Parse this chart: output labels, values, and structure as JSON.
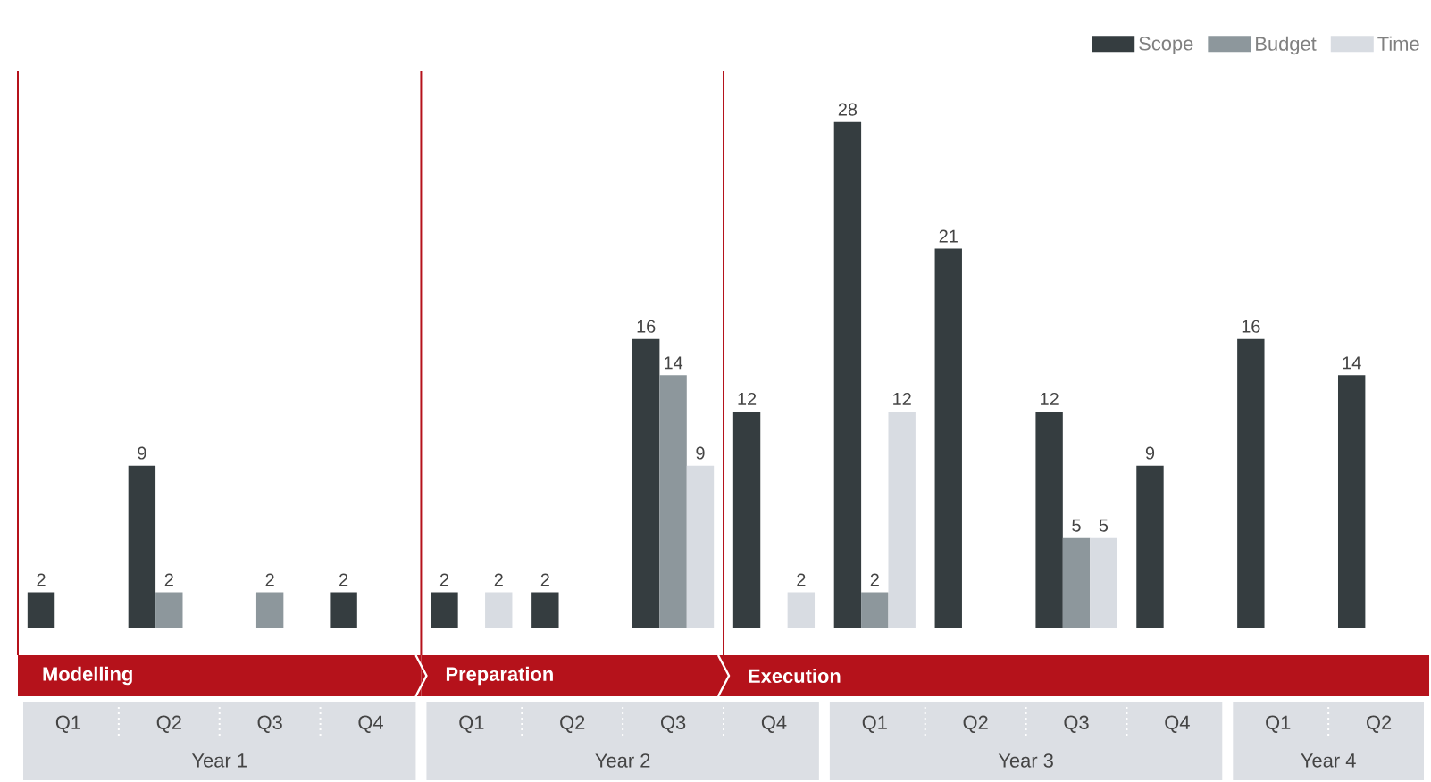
{
  "chart_data": {
    "type": "bar",
    "categories": [
      "Q1",
      "Q2",
      "Q3",
      "Q4",
      "Q1",
      "Q2",
      "Q3",
      "Q4",
      "Q1",
      "Q2",
      "Q3",
      "Q4",
      "Q1",
      "Q2"
    ],
    "series": [
      {
        "name": "Scope",
        "color": "#353d40",
        "values": [
          2,
          9,
          null,
          2,
          2,
          2,
          16,
          12,
          28,
          21,
          12,
          9,
          16,
          14
        ]
      },
      {
        "name": "Budget",
        "color": "#8d979c",
        "values": [
          null,
          2,
          2,
          null,
          null,
          null,
          14,
          null,
          2,
          null,
          5,
          null,
          null,
          null
        ]
      },
      {
        "name": "Time",
        "color": "#d8dce2",
        "values": [
          null,
          null,
          null,
          null,
          2,
          null,
          9,
          2,
          12,
          null,
          5,
          null,
          null,
          null
        ]
      }
    ],
    "annotations": [
      "Year 1",
      "Year 2",
      "Year 3",
      "Year 4",
      "Modelling",
      "Preparation",
      "Execution"
    ],
    "data_labels": true,
    "legend": "top right"
  }
}
